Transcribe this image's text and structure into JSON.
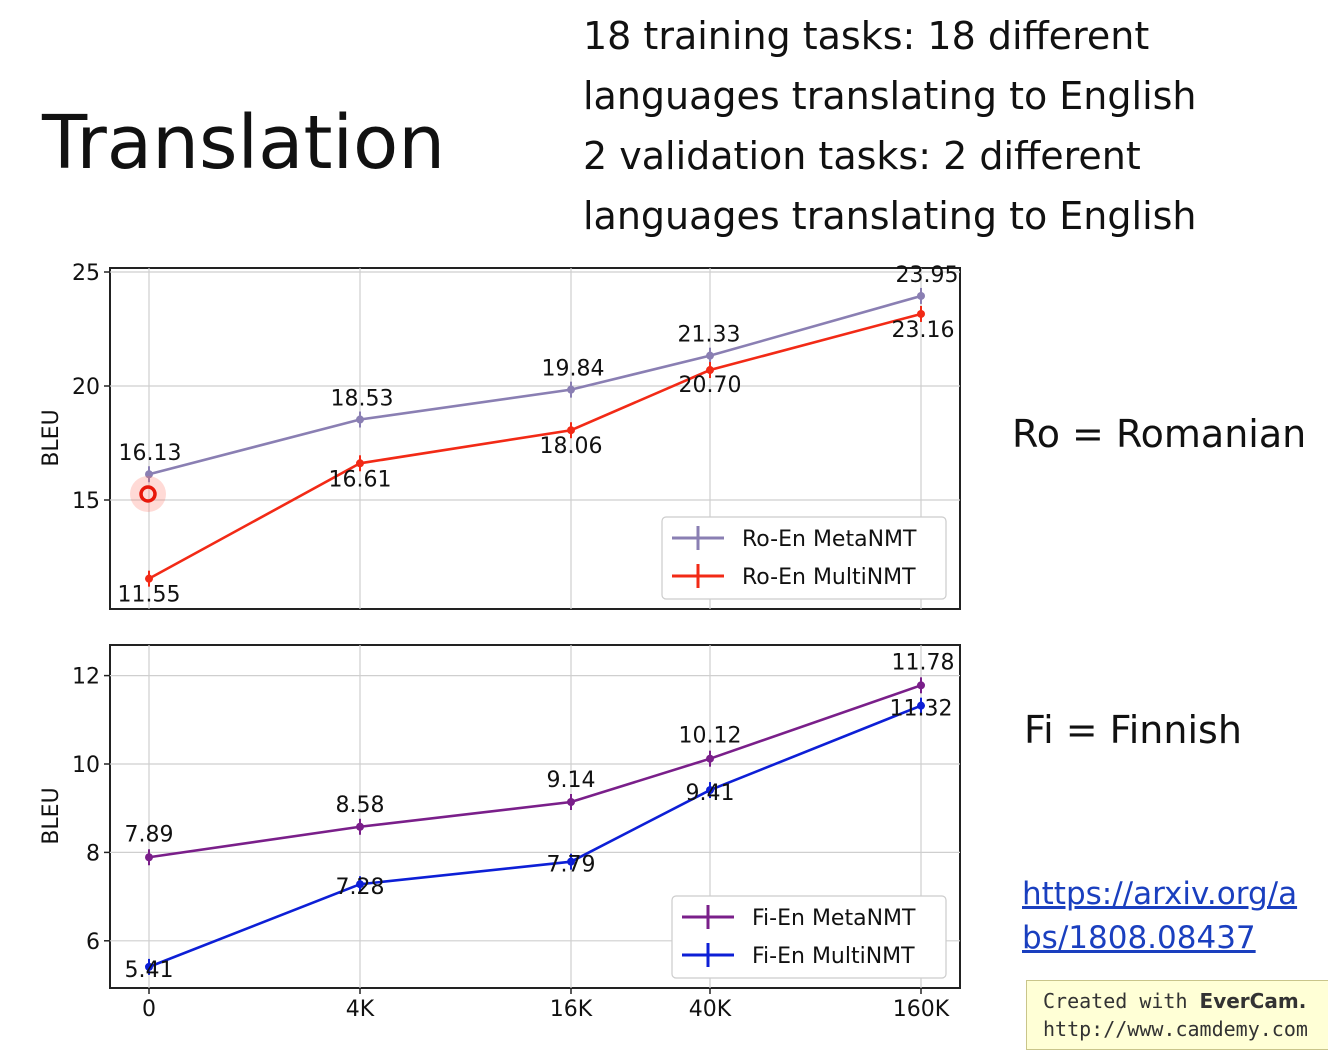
{
  "slide": {
    "title": "Translation",
    "description_lines": [
      "18 training tasks: 18 different",
      "languages translating to English",
      "2 validation tasks: 2 different",
      "languages translating to English"
    ],
    "ro_note": "Ro = Romanian",
    "fi_note": "Fi = Finnish",
    "link_lines": [
      "https://arxiv.org/a",
      "bs/1808.08437"
    ],
    "watermark": {
      "prefix": "Created with ",
      "brand": "EverCam.",
      "url": "http://www.camdemy.com"
    }
  },
  "chart_data": [
    {
      "type": "line",
      "ylabel": "BLEU",
      "x": [
        "0",
        "4K",
        "16K",
        "40K",
        "160K"
      ],
      "ylim": [
        11,
        25.2
      ],
      "yticks": [
        15,
        20,
        25
      ],
      "grid": true,
      "legend_position": "bottom-right",
      "series": [
        {
          "name": "Ro-En MetaNMT",
          "color": "#8a7fb3",
          "values": [
            16.13,
            18.53,
            19.84,
            21.33,
            23.95
          ],
          "labels": [
            "16.13",
            "18.53",
            "19.84",
            "21.33",
            "23.95"
          ]
        },
        {
          "name": "Ro-En MultiNMT",
          "color": "#f22a16",
          "values": [
            11.55,
            16.61,
            18.06,
            20.7,
            23.16
          ],
          "labels": [
            "11.55",
            "16.61",
            "18.06",
            "20.70",
            "23.16"
          ]
        }
      ]
    },
    {
      "type": "line",
      "ylabel": "BLEU",
      "x": [
        "0",
        "4K",
        "16K",
        "40K",
        "160K"
      ],
      "ylim": [
        5.0,
        12.75
      ],
      "yticks": [
        6,
        8,
        10,
        12
      ],
      "xticks": [
        "0",
        "4K",
        "16K",
        "40K",
        "160K"
      ],
      "grid": true,
      "legend_position": "bottom-right",
      "series": [
        {
          "name": "Fi-En MetaNMT",
          "color": "#7a1f8a",
          "values": [
            7.89,
            8.58,
            9.14,
            10.12,
            11.78
          ],
          "labels": [
            "7.89",
            "8.58",
            "9.14",
            "10.12",
            "11.78"
          ]
        },
        {
          "name": "Fi-En MultiNMT",
          "color": "#0d1fd6",
          "values": [
            5.41,
            7.28,
            7.79,
            9.41,
            11.32
          ],
          "labels": [
            "5.41",
            "7.28",
            "7.79",
            "9.41",
            "11.32"
          ]
        }
      ]
    }
  ]
}
